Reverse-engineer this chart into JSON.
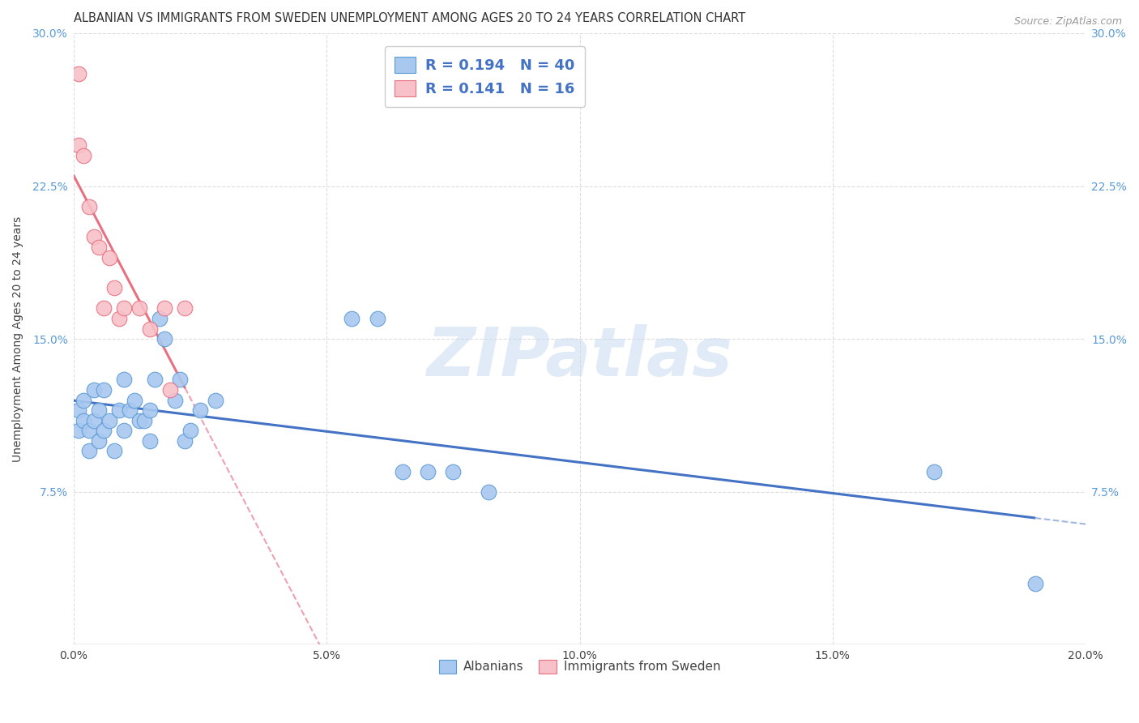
{
  "title": "ALBANIAN VS IMMIGRANTS FROM SWEDEN UNEMPLOYMENT AMONG AGES 20 TO 24 YEARS CORRELATION CHART",
  "source": "Source: ZipAtlas.com",
  "ylabel": "Unemployment Among Ages 20 to 24 years",
  "xlim": [
    0.0,
    0.2
  ],
  "ylim": [
    0.0,
    0.3
  ],
  "xticks": [
    0.0,
    0.05,
    0.1,
    0.15,
    0.2
  ],
  "yticks": [
    0.0,
    0.075,
    0.15,
    0.225,
    0.3
  ],
  "xtick_labels": [
    "0.0%",
    "5.0%",
    "10.0%",
    "15.0%",
    "20.0%"
  ],
  "ytick_labels": [
    "",
    "7.5%",
    "15.0%",
    "22.5%",
    "30.0%"
  ],
  "blue_dot_color": "#A8C8F0",
  "blue_dot_edge": "#5B9BD5",
  "pink_dot_color": "#F8C0C8",
  "pink_dot_edge": "#E87080",
  "blue_line_color": "#4472C4",
  "pink_line_color": "#E87080",
  "pink_dash_color": "#F0A0B0",
  "blue_dash_color": "#A0B8E0",
  "watermark": "ZIPatlas",
  "legend_r_blue": "0.194",
  "legend_n_blue": "40",
  "legend_r_pink": "0.141",
  "legend_n_pink": "16",
  "legend_label_blue": "Albanians",
  "legend_label_pink": "Immigrants from Sweden",
  "blue_x": [
    0.001,
    0.001,
    0.002,
    0.002,
    0.003,
    0.003,
    0.004,
    0.004,
    0.005,
    0.005,
    0.006,
    0.006,
    0.007,
    0.008,
    0.009,
    0.01,
    0.01,
    0.011,
    0.012,
    0.013,
    0.014,
    0.015,
    0.015,
    0.016,
    0.017,
    0.018,
    0.02,
    0.021,
    0.022,
    0.023,
    0.025,
    0.028,
    0.055,
    0.06,
    0.065,
    0.07,
    0.075,
    0.082,
    0.17,
    0.19
  ],
  "blue_y": [
    0.115,
    0.105,
    0.12,
    0.11,
    0.105,
    0.095,
    0.125,
    0.11,
    0.115,
    0.1,
    0.125,
    0.105,
    0.11,
    0.095,
    0.115,
    0.13,
    0.105,
    0.115,
    0.12,
    0.11,
    0.11,
    0.115,
    0.1,
    0.13,
    0.16,
    0.15,
    0.12,
    0.13,
    0.1,
    0.105,
    0.115,
    0.12,
    0.16,
    0.16,
    0.085,
    0.085,
    0.085,
    0.075,
    0.085,
    0.03
  ],
  "pink_x": [
    0.001,
    0.001,
    0.002,
    0.003,
    0.004,
    0.005,
    0.006,
    0.007,
    0.008,
    0.009,
    0.01,
    0.013,
    0.015,
    0.018,
    0.019,
    0.022
  ],
  "pink_y": [
    0.28,
    0.245,
    0.24,
    0.215,
    0.2,
    0.195,
    0.165,
    0.19,
    0.175,
    0.16,
    0.165,
    0.165,
    0.155,
    0.165,
    0.125,
    0.165
  ],
  "title_fontsize": 10.5,
  "axis_label_fontsize": 10,
  "tick_fontsize": 10,
  "legend_fontsize": 13
}
